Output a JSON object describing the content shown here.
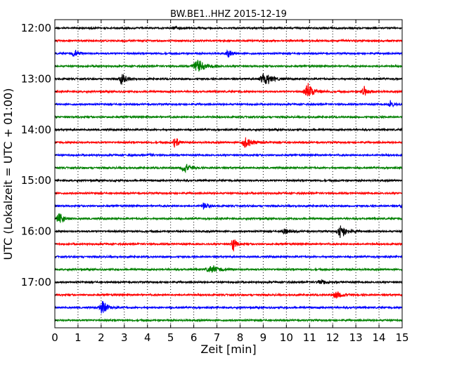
{
  "chart_data": {
    "type": "line",
    "title": "BW.BE1..HHZ 2015-12-19",
    "xlabel": "Zeit  [min]",
    "ylabel": "UTC (Lokalzeit = UTC + 01:00)",
    "xlim": [
      0,
      15
    ],
    "x_ticks": [
      "0",
      "1",
      "2",
      "3",
      "4",
      "5",
      "6",
      "7",
      "8",
      "9",
      "10",
      "11",
      "12",
      "13",
      "14",
      "15"
    ],
    "y_ticks": [
      "12:00",
      "13:00",
      "14:00",
      "15:00",
      "16:00",
      "17:00"
    ],
    "grid": "vertical dotted",
    "trace_colors": [
      "#000000",
      "#ff0000",
      "#0000ff",
      "#008000"
    ],
    "traces": [
      {
        "start": "12:00",
        "events": [
          {
            "t": 5.2,
            "amp": 0.25,
            "dur": 0.5
          }
        ]
      },
      {
        "start": "12:15",
        "events": [
          {
            "t": 2.9,
            "amp": 0.2,
            "dur": 0.15
          }
        ]
      },
      {
        "start": "12:30",
        "events": [
          {
            "t": 0.85,
            "amp": 0.7,
            "dur": 0.4
          },
          {
            "t": 7.5,
            "amp": 0.8,
            "dur": 0.3
          }
        ]
      },
      {
        "start": "12:45",
        "events": [
          {
            "t": 1.8,
            "amp": 0.25,
            "dur": 0.1
          },
          {
            "t": 6.15,
            "amp": 1.5,
            "dur": 0.6
          }
        ]
      },
      {
        "start": "13:00",
        "events": [
          {
            "t": 2.9,
            "amp": 1.1,
            "dur": 0.4
          },
          {
            "t": 9.05,
            "amp": 1.5,
            "dur": 0.6
          }
        ]
      },
      {
        "start": "13:15",
        "events": [
          {
            "t": 10.95,
            "amp": 1.5,
            "dur": 0.6
          },
          {
            "t": 13.35,
            "amp": 1.0,
            "dur": 0.4
          }
        ]
      },
      {
        "start": "13:30",
        "events": [
          {
            "t": 14.5,
            "amp": 0.7,
            "dur": 0.3
          }
        ]
      },
      {
        "start": "13:45",
        "events": []
      },
      {
        "start": "14:00",
        "events": []
      },
      {
        "start": "14:15",
        "events": [
          {
            "t": 5.2,
            "amp": 1.3,
            "dur": 0.3
          },
          {
            "t": 8.25,
            "amp": 1.0,
            "dur": 0.6
          }
        ]
      },
      {
        "start": "14:30",
        "events": [
          {
            "t": 3.2,
            "amp": 0.2,
            "dur": 0.2
          },
          {
            "t": 4.1,
            "amp": 0.25,
            "dur": 0.2
          }
        ]
      },
      {
        "start": "14:45",
        "events": [
          {
            "t": 5.6,
            "amp": 1.0,
            "dur": 0.5
          }
        ]
      },
      {
        "start": "15:00",
        "events": [
          {
            "t": 2.6,
            "amp": 0.2,
            "dur": 0.1
          }
        ]
      },
      {
        "start": "15:15",
        "events": []
      },
      {
        "start": "15:30",
        "events": [
          {
            "t": 6.45,
            "amp": 0.8,
            "dur": 0.35
          },
          {
            "t": 14.95,
            "amp": 0.35,
            "dur": 0.15
          }
        ]
      },
      {
        "start": "15:45",
        "events": [
          {
            "t": 0.2,
            "amp": 1.1,
            "dur": 0.4
          }
        ]
      },
      {
        "start": "16:00",
        "events": [
          {
            "t": 3.9,
            "amp": 0.2,
            "dur": 0.1
          },
          {
            "t": 9.9,
            "amp": 0.6,
            "dur": 0.5
          },
          {
            "t": 12.35,
            "amp": 1.5,
            "dur": 0.5
          }
        ]
      },
      {
        "start": "16:15",
        "events": [
          {
            "t": 7.7,
            "amp": 1.7,
            "dur": 0.25
          }
        ]
      },
      {
        "start": "16:30",
        "events": []
      },
      {
        "start": "16:45",
        "events": [
          {
            "t": 6.8,
            "amp": 0.7,
            "dur": 0.8
          }
        ]
      },
      {
        "start": "17:00",
        "events": [
          {
            "t": 11.5,
            "amp": 0.5,
            "dur": 0.6
          }
        ]
      },
      {
        "start": "17:15",
        "events": [
          {
            "t": 12.15,
            "amp": 0.7,
            "dur": 0.6
          }
        ]
      },
      {
        "start": "17:30",
        "events": [
          {
            "t": 2.05,
            "amp": 1.6,
            "dur": 0.4
          }
        ]
      },
      {
        "start": "17:45",
        "events": []
      }
    ]
  }
}
